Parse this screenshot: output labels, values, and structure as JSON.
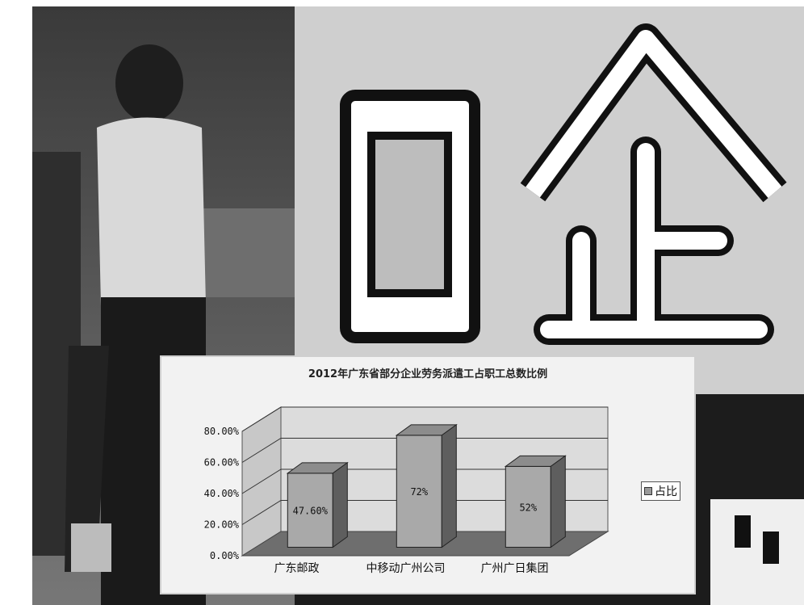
{
  "chart_data": {
    "type": "bar",
    "title": "2012年广东省部分企业劳务派遣工占职工总数比例",
    "categories": [
      "广东邮政",
      "中移动广州公司",
      "广州广日集团"
    ],
    "series": [
      {
        "name": "占比",
        "values": [
          47.6,
          72,
          52
        ]
      }
    ],
    "data_labels": [
      "47.60%",
      "72%",
      "52%"
    ],
    "ytick_labels": [
      "0.00%",
      "20.00%",
      "40.00%",
      "60.00%",
      "80.00%"
    ],
    "ylim": [
      0,
      80
    ],
    "grid": true,
    "legend": "right",
    "bar_color": "#a9a9a9"
  },
  "photo": {
    "sign_text": "国企"
  }
}
